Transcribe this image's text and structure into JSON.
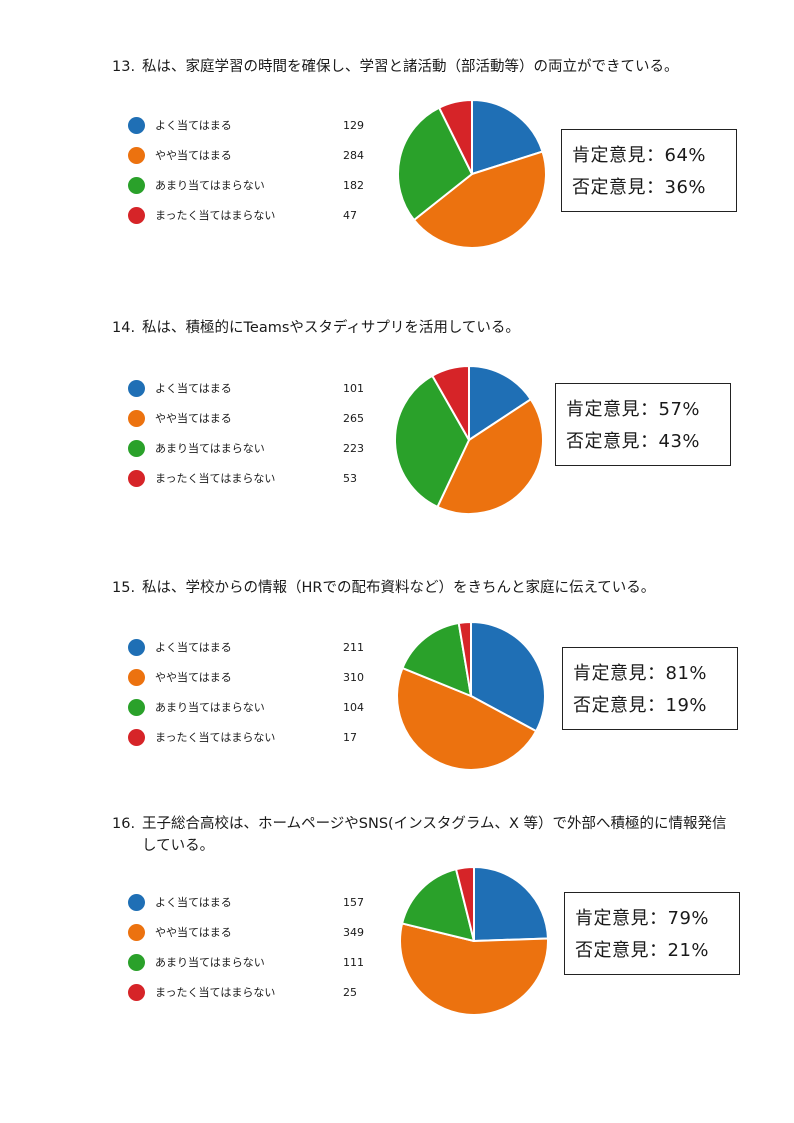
{
  "legend_colors": [
    "#1f6fb5",
    "#ec720f",
    "#2aa12a",
    "#d62428"
  ],
  "legend_labels": [
    "よく当てはまる",
    "やや当てはまる",
    "あまり当てはまらない",
    "まったく当てはまらない"
  ],
  "questions": [
    {
      "number": "13.",
      "title_lines": [
        "私は、家庭学習の時間を確保し、学習と諸活動（部活動等）の両立ができている。"
      ],
      "positive": "肯定意見：64%",
      "negative": "否定意見：36%"
    },
    {
      "number": "14.",
      "title_lines": [
        "私は、積極的にTeamsやスタディサプリを活用している。"
      ],
      "positive": "肯定意見：57%",
      "negative": "否定意見：43%"
    },
    {
      "number": "15.",
      "title_lines": [
        "私は、学校からの情報（HRでの配布資料など）をきちんと家庭に伝えている。"
      ],
      "positive": "肯定意見：81%",
      "negative": "否定意見：19%"
    },
    {
      "number": "16.",
      "title_lines": [
        "王子総合高校は、ホームページやSNS(インスタグラム、X 等）で外部へ積極的に情報発信",
        "している。"
      ],
      "positive": "肯定意見：79%",
      "negative": "否定意見：21%"
    }
  ],
  "chart_data": [
    {
      "type": "pie",
      "categories": [
        "よく当てはまる",
        "やや当てはまる",
        "あまり当てはまらない",
        "まったく当てはまらない"
      ],
      "values": [
        129,
        284,
        182,
        47
      ]
    },
    {
      "type": "pie",
      "categories": [
        "よく当てはまる",
        "やや当てはまる",
        "あまり当てはまらない",
        "まったく当てはまらない"
      ],
      "values": [
        101,
        265,
        223,
        53
      ]
    },
    {
      "type": "pie",
      "categories": [
        "よく当てはまる",
        "やや当てはまる",
        "あまり当てはまらない",
        "まったく当てはまらない"
      ],
      "values": [
        211,
        310,
        104,
        17
      ]
    },
    {
      "type": "pie",
      "categories": [
        "よく当てはまる",
        "やや当てはまる",
        "あまり当てはまらない",
        "まったく当てはまらない"
      ],
      "values": [
        157,
        349,
        111,
        25
      ]
    }
  ]
}
